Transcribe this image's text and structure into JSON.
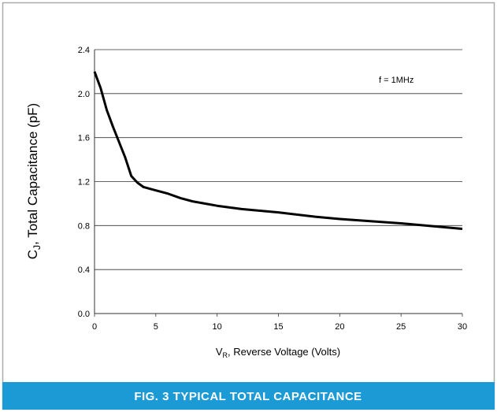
{
  "chart_data": {
    "type": "line",
    "title": "FIG. 3 TYPICAL TOTAL CAPACITANCE",
    "xlabel": {
      "main": "V",
      "sub": "R",
      "rest": ", Reverse Voltage (Volts)"
    },
    "ylabel": {
      "main": "C",
      "sub": "J",
      "rest": ", Total Capacitance (pF)"
    },
    "annotation": "f = 1MHz",
    "x": [
      0,
      0.5,
      1,
      1.5,
      2,
      2.5,
      3,
      3.5,
      4,
      5,
      6,
      7,
      8,
      10,
      12,
      15,
      18,
      20,
      25,
      30
    ],
    "series": [
      {
        "name": "CJ",
        "color": "#000000",
        "values": [
          2.2,
          2.05,
          1.85,
          1.7,
          1.56,
          1.42,
          1.25,
          1.19,
          1.15,
          1.12,
          1.09,
          1.05,
          1.02,
          0.98,
          0.95,
          0.92,
          0.88,
          0.86,
          0.82,
          0.77
        ]
      }
    ],
    "xlim": [
      0,
      30
    ],
    "xticks": [
      0,
      5,
      10,
      15,
      20,
      25,
      30
    ],
    "ylim": [
      0,
      2.4
    ],
    "yticks": [
      {
        "value": 0,
        "label": "0.0"
      },
      0.4,
      0.8,
      1.2,
      1.6,
      {
        "value": 2,
        "label": "2.0"
      },
      2.4
    ],
    "grid": true
  }
}
